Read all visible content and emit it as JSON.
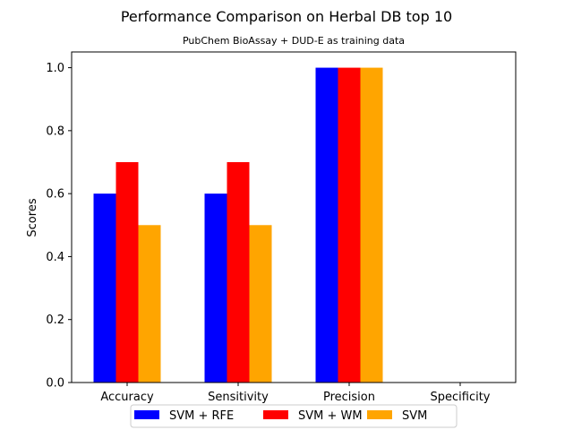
{
  "chart_data": {
    "type": "bar",
    "title": "Performance Comparison on Herbal DB top 10",
    "subtitle": "PubChem BioAssay + DUD-E as training data",
    "xlabel": "",
    "ylabel": "Scores",
    "ylim": [
      0,
      1.05
    ],
    "yticks": [
      "0.0",
      "0.2",
      "0.4",
      "0.6",
      "0.8",
      "1.0"
    ],
    "categories": [
      "Accuracy",
      "Sensitivity",
      "Precision",
      "Specificity"
    ],
    "series": [
      {
        "name": "SVM + RFE",
        "color": "#0000ff",
        "values": [
          0.6,
          0.6,
          1.0,
          0.0
        ]
      },
      {
        "name": "SVM + WM",
        "color": "#ff0000",
        "values": [
          0.7,
          0.7,
          1.0,
          0.0
        ]
      },
      {
        "name": "SVM",
        "color": "#ffa500",
        "values": [
          0.5,
          0.5,
          1.0,
          0.0
        ]
      }
    ],
    "legend_position": "bottom-center",
    "grid": false
  }
}
